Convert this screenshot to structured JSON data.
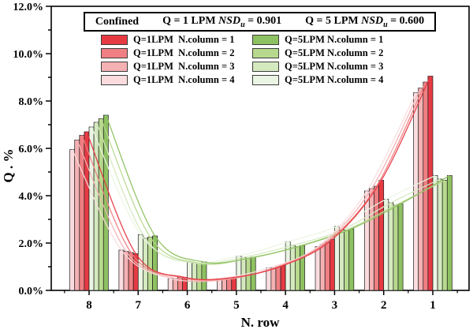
{
  "header": {
    "condition": "Confined",
    "series_stats": [
      {
        "flow": "Q = 1 LPM",
        "metric": "NSD",
        "metric_sub": "u",
        "value": "= 0.901"
      },
      {
        "flow": "Q = 5 LPM",
        "metric": "NSD",
        "metric_sub": "u",
        "value": "= 0.600"
      }
    ]
  },
  "chart_data": {
    "type": "bar",
    "title": "Confined: Q = 1 LPM NSDu = 0.901, Q = 5 LPM NSDu = 0.600",
    "xlabel": "N. row",
    "ylabel": "Q . %",
    "categories": [
      "8",
      "7",
      "6",
      "5",
      "4",
      "3",
      "2",
      "1"
    ],
    "ylim": [
      0,
      12
    ],
    "y_tick_step": 2,
    "y_minor_step": 1,
    "y_tick_suffix": "%",
    "grid": false,
    "legend_position": "top-left-inside",
    "bar_overlay": "smooth spline curve through bar tops for every series",
    "series": [
      {
        "name": "Q=1LPM  N.column = 1",
        "color": "#e63a43",
        "slot": 3,
        "values": [
          6.7,
          1.55,
          0.55,
          0.55,
          1.05,
          2.15,
          4.65,
          9.05
        ]
      },
      {
        "name": "Q=1LPM  N.column = 2",
        "color": "#ef7f82",
        "slot": 2,
        "values": [
          6.55,
          1.6,
          0.55,
          0.5,
          1.0,
          2.05,
          4.4,
          8.8
        ]
      },
      {
        "name": "Q=1LPM  N.column = 3",
        "color": "#f4b1b3",
        "slot": 1,
        "values": [
          6.35,
          1.65,
          0.5,
          0.45,
          0.95,
          1.95,
          4.3,
          8.55
        ]
      },
      {
        "name": "Q=1LPM  N.column = 4",
        "color": "#fbdcde",
        "slot": 0,
        "values": [
          5.95,
          1.7,
          0.5,
          0.5,
          0.95,
          1.85,
          4.2,
          8.35
        ]
      },
      {
        "name": "Q=5LPM N.column = 1",
        "color": "#8ec161",
        "slot": 7,
        "values": [
          7.4,
          2.3,
          1.2,
          1.4,
          1.9,
          2.6,
          3.65,
          4.85
        ]
      },
      {
        "name": "Q=5LPM N.column = 2",
        "color": "#b7d98e",
        "slot": 6,
        "values": [
          7.25,
          2.25,
          1.15,
          1.35,
          1.85,
          2.55,
          3.6,
          4.65
        ]
      },
      {
        "name": "Q=5LPM N.column = 3",
        "color": "#d5e9bf",
        "slot": 5,
        "values": [
          7.1,
          2.2,
          1.15,
          1.4,
          1.9,
          2.55,
          3.7,
          4.7
        ]
      },
      {
        "name": "Q=5LPM N.column = 4",
        "color": "#ebf5e3",
        "slot": 4,
        "values": [
          6.9,
          2.35,
          1.2,
          1.45,
          2.05,
          2.7,
          3.85,
          4.85
        ]
      }
    ]
  }
}
